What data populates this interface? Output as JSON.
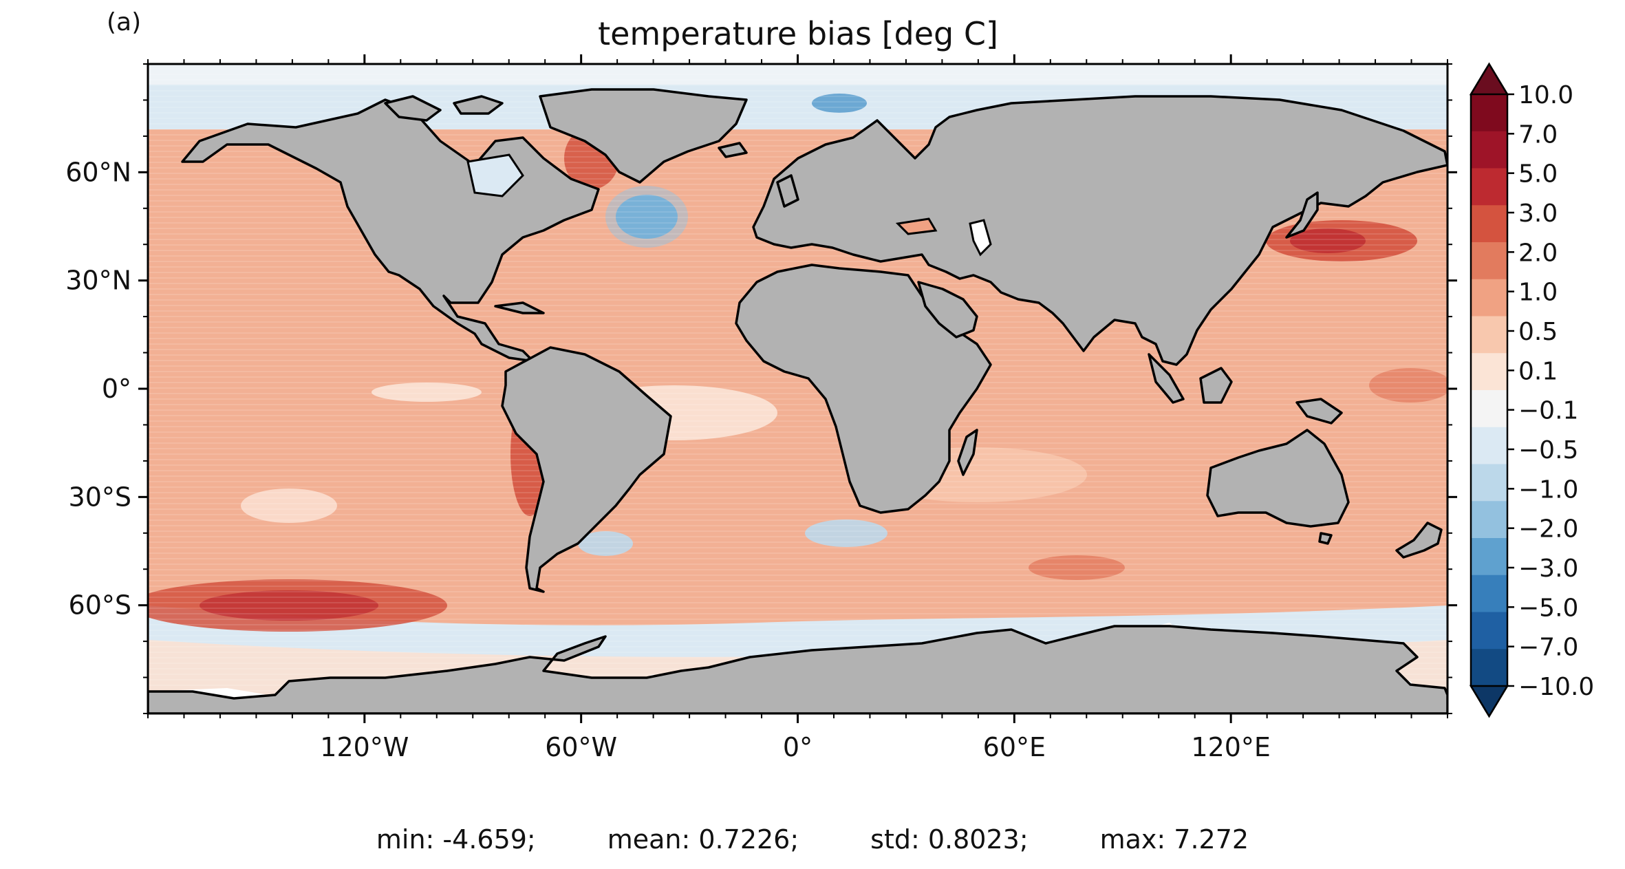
{
  "panel_label": "(a)",
  "title": "temperature bias [deg C]",
  "axes": {
    "lon_ticks": [
      {
        "value": -120,
        "label": "120°W"
      },
      {
        "value": -60,
        "label": "60°W"
      },
      {
        "value": 0,
        "label": "0°"
      },
      {
        "value": 60,
        "label": "60°E"
      },
      {
        "value": 120,
        "label": "120°E"
      }
    ],
    "lat_ticks": [
      {
        "value": 60,
        "label": "60°N"
      },
      {
        "value": 30,
        "label": "30°N"
      },
      {
        "value": 0,
        "label": "0°"
      },
      {
        "value": -30,
        "label": "30°S"
      },
      {
        "value": -60,
        "label": "60°S"
      }
    ],
    "lon_range": [
      -180,
      180
    ],
    "lat_range": [
      -90,
      90
    ],
    "projection": "PlateCarree"
  },
  "colorbar": {
    "levels": [
      "10.0",
      "7.0",
      "5.0",
      "3.0",
      "2.0",
      "1.0",
      "0.5",
      "0.1",
      "−0.1",
      "−0.5",
      "−1.0",
      "−2.0",
      "−3.0",
      "−5.0",
      "−7.0",
      "−10.0"
    ],
    "colors": [
      "#7f0a1e",
      "#9e1428",
      "#bd2a30",
      "#d4533f",
      "#e27b5e",
      "#f0a283",
      "#f8c8ae",
      "#fbe4d6",
      "#f4f4f4",
      "#dbe9f3",
      "#bcd8ea",
      "#93c1df",
      "#5fa1cf",
      "#377fbb",
      "#1f60a3",
      "#124a83"
    ],
    "extend": "both",
    "over_color": "#6a0d1f",
    "under_color": "#0d3766"
  },
  "colors": {
    "land": "#b2b2b2",
    "ocean_base": "#f3b79a",
    "sea_ice": "#ffffff"
  },
  "stats": {
    "min": "min: -4.659;",
    "mean": "mean: 0.7226;",
    "std": "std: 0.8023;",
    "max": "max: 7.272"
  }
}
